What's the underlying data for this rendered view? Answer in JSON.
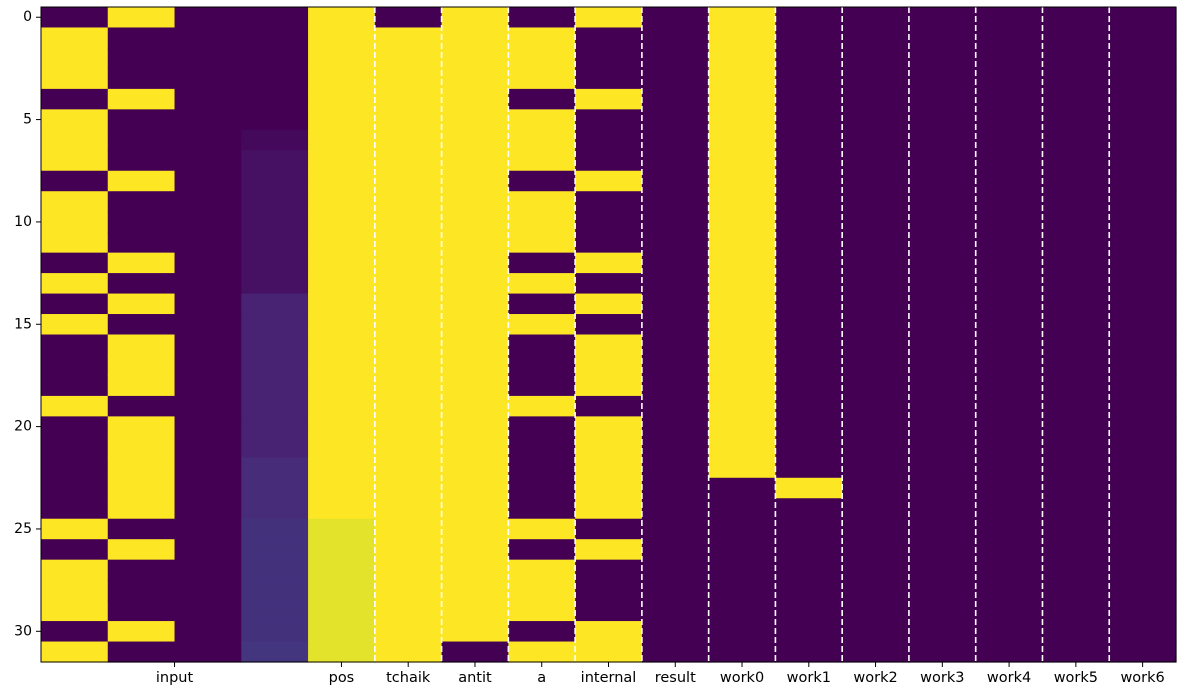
{
  "chart_data": {
    "type": "heatmap",
    "title": "",
    "xlabel": "",
    "ylabel": "",
    "colormap": "viridis",
    "vmin": 0,
    "vmax": 1,
    "colors": {
      "low": "#440154",
      "high": "#fde725",
      "divider": "#ffffff",
      "frame": "#000000"
    },
    "n_rows": 32,
    "y_ticks": [
      0,
      5,
      10,
      15,
      20,
      25,
      30
    ],
    "x_tick_labels": [
      {
        "col": 1.5,
        "label": "input"
      },
      {
        "col": 4,
        "label": "pos"
      },
      {
        "col": 5,
        "label": "tchaik"
      },
      {
        "col": 6,
        "label": "antit"
      },
      {
        "col": 7,
        "label": "a"
      },
      {
        "col": 8,
        "label": "internal"
      },
      {
        "col": 9,
        "label": "result"
      },
      {
        "col": 10,
        "label": "work0"
      },
      {
        "col": 11,
        "label": "work1"
      },
      {
        "col": 12,
        "label": "work2"
      },
      {
        "col": 13,
        "label": "work3"
      },
      {
        "col": 14,
        "label": "work4"
      },
      {
        "col": 15,
        "label": "work5"
      },
      {
        "col": 16,
        "label": "work6"
      }
    ],
    "group_dividers": [
      5,
      6,
      7,
      8,
      9,
      10,
      11,
      12,
      13,
      14,
      15,
      16
    ],
    "columns": [
      [
        0,
        1,
        1,
        1,
        0,
        1,
        1,
        1,
        0,
        1,
        1,
        1,
        0,
        1,
        0,
        1,
        0,
        0,
        0,
        1,
        0,
        0,
        0,
        0,
        0,
        1,
        0,
        1,
        1,
        1,
        0,
        1
      ],
      [
        1,
        0,
        0,
        0,
        1,
        0,
        0,
        0,
        1,
        0,
        0,
        0,
        1,
        0,
        1,
        0,
        1,
        1,
        1,
        0,
        1,
        1,
        1,
        1,
        1,
        0,
        1,
        0,
        0,
        0,
        1,
        0
      ],
      [
        0,
        0,
        0,
        0,
        0,
        0,
        0,
        0,
        0,
        0,
        0,
        0,
        0,
        0,
        0,
        0,
        0,
        0,
        0,
        0,
        0,
        0,
        0,
        0,
        0,
        0,
        0,
        0,
        0,
        0,
        0,
        0
      ],
      [
        0,
        0,
        0,
        0,
        0,
        0,
        0.03,
        0.06,
        0.06,
        0.06,
        0.06,
        0.06,
        0.06,
        0.06,
        0.12,
        0.12,
        0.12,
        0.12,
        0.12,
        0.12,
        0.12,
        0.12,
        0.16,
        0.16,
        0.16,
        0.18,
        0.18,
        0.18,
        0.18,
        0.18,
        0.18,
        0.2
      ],
      [
        1,
        1,
        1,
        1,
        1,
        1,
        1,
        1,
        1,
        1,
        1,
        1,
        1,
        1,
        1,
        1,
        1,
        1,
        1,
        1,
        1,
        1,
        1,
        1,
        1,
        0.97,
        0.97,
        0.97,
        0.97,
        0.97,
        0.97,
        0.97
      ],
      [
        0,
        1,
        1,
        1,
        1,
        1,
        1,
        1,
        1,
        1,
        1,
        1,
        1,
        1,
        1,
        1,
        1,
        1,
        1,
        1,
        1,
        1,
        1,
        1,
        1,
        1,
        1,
        1,
        1,
        1,
        1,
        1
      ],
      [
        1,
        1,
        1,
        1,
        1,
        1,
        1,
        1,
        1,
        1,
        1,
        1,
        1,
        1,
        1,
        1,
        1,
        1,
        1,
        1,
        1,
        1,
        1,
        1,
        1,
        1,
        1,
        1,
        1,
        1,
        1,
        0
      ],
      [
        0,
        1,
        1,
        1,
        0,
        1,
        1,
        1,
        0,
        1,
        1,
        1,
        0,
        1,
        0,
        1,
        0,
        0,
        0,
        1,
        0,
        0,
        0,
        0,
        0,
        1,
        0,
        1,
        1,
        1,
        0,
        1
      ],
      [
        1,
        0,
        0,
        0,
        1,
        0,
        0,
        0,
        1,
        0,
        0,
        0,
        1,
        0,
        1,
        0,
        1,
        1,
        1,
        0,
        1,
        1,
        1,
        1,
        1,
        0,
        1,
        0,
        0,
        0,
        1,
        1
      ],
      [
        0,
        0,
        0,
        0,
        0,
        0,
        0,
        0,
        0,
        0,
        0,
        0,
        0,
        0,
        0,
        0,
        0,
        0,
        0,
        0,
        0,
        0,
        0,
        0,
        0,
        0,
        0,
        0,
        0,
        0,
        0,
        0
      ],
      [
        1,
        1,
        1,
        1,
        1,
        1,
        1,
        1,
        1,
        1,
        1,
        1,
        1,
        1,
        1,
        1,
        1,
        1,
        1,
        1,
        1,
        1,
        1,
        0,
        0,
        0,
        0,
        0,
        0,
        0,
        0,
        0
      ],
      [
        0,
        0,
        0,
        0,
        0,
        0,
        0,
        0,
        0,
        0,
        0,
        0,
        0,
        0,
        0,
        0,
        0,
        0,
        0,
        0,
        0,
        0,
        0,
        1,
        0,
        0,
        0,
        0,
        0,
        0,
        0,
        0
      ],
      [
        0,
        0,
        0,
        0,
        0,
        0,
        0,
        0,
        0,
        0,
        0,
        0,
        0,
        0,
        0,
        0,
        0,
        0,
        0,
        0,
        0,
        0,
        0,
        0,
        0,
        0,
        0,
        0,
        0,
        0,
        0,
        0
      ],
      [
        0,
        0,
        0,
        0,
        0,
        0,
        0,
        0,
        0,
        0,
        0,
        0,
        0,
        0,
        0,
        0,
        0,
        0,
        0,
        0,
        0,
        0,
        0,
        0,
        0,
        0,
        0,
        0,
        0,
        0,
        0,
        0
      ],
      [
        0,
        0,
        0,
        0,
        0,
        0,
        0,
        0,
        0,
        0,
        0,
        0,
        0,
        0,
        0,
        0,
        0,
        0,
        0,
        0,
        0,
        0,
        0,
        0,
        0,
        0,
        0,
        0,
        0,
        0,
        0,
        0
      ],
      [
        0,
        0,
        0,
        0,
        0,
        0,
        0,
        0,
        0,
        0,
        0,
        0,
        0,
        0,
        0,
        0,
        0,
        0,
        0,
        0,
        0,
        0,
        0,
        0,
        0,
        0,
        0,
        0,
        0,
        0,
        0,
        0
      ],
      [
        0,
        0,
        0,
        0,
        0,
        0,
        0,
        0,
        0,
        0,
        0,
        0,
        0,
        0,
        0,
        0,
        0,
        0,
        0,
        0,
        0,
        0,
        0,
        0,
        0,
        0,
        0,
        0,
        0,
        0,
        0,
        0
      ]
    ]
  }
}
